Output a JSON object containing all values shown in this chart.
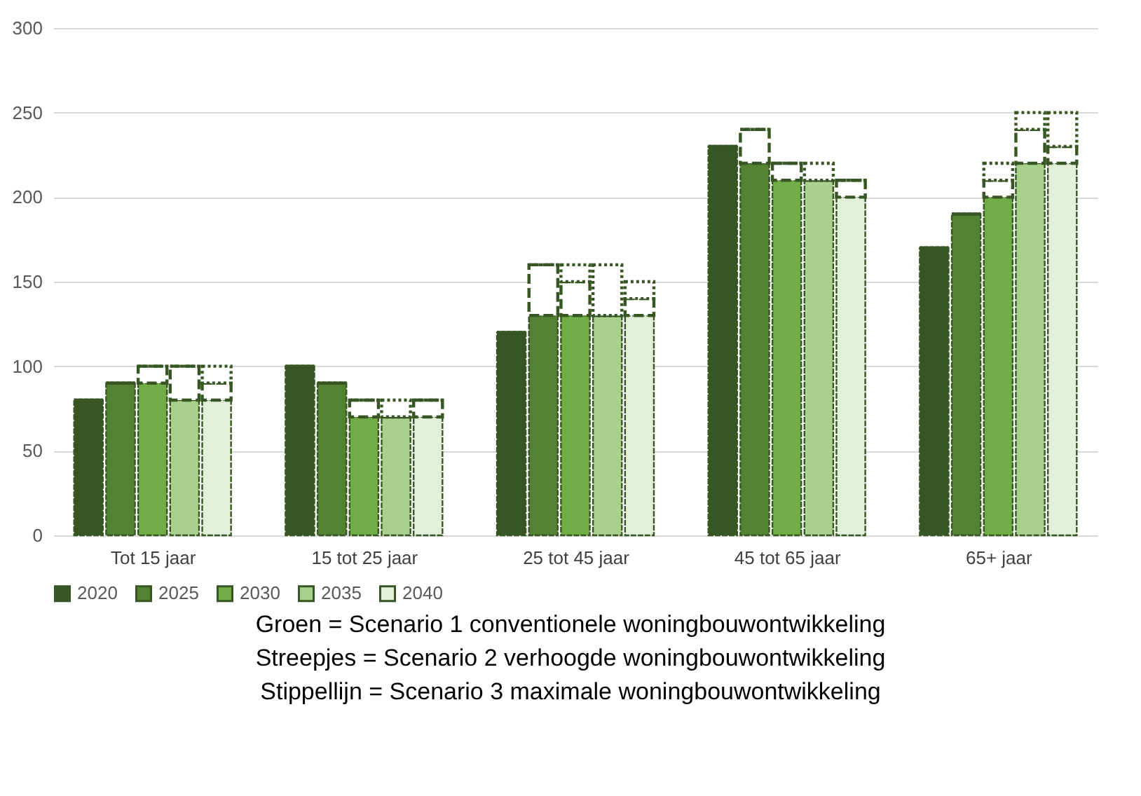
{
  "chart_data": {
    "type": "bar",
    "stacked": true,
    "categories": [
      null,
      null,
      "Tot 15 jaar",
      null,
      null,
      null,
      null,
      "15 tot 25 jaar",
      null,
      null,
      null,
      null,
      "25 tot 45 jaar",
      null,
      null,
      null,
      null,
      "45 tot 65 jaar",
      null,
      null,
      null,
      null,
      "65+ jaar",
      null,
      null
    ],
    "series": [
      {
        "name": "2020",
        "color": "#375623",
        "values": [
          80,
          null,
          null,
          null,
          null,
          100,
          null,
          null,
          null,
          null,
          120,
          null,
          null,
          null,
          null,
          230,
          null,
          null,
          null,
          null,
          170,
          null,
          null,
          null,
          null
        ]
      },
      {
        "name": "2025",
        "color": "#548235",
        "values": [
          null,
          90,
          null,
          null,
          null,
          null,
          90,
          null,
          null,
          null,
          null,
          130,
          null,
          null,
          null,
          null,
          220,
          null,
          null,
          null,
          null,
          190,
          null,
          null,
          null
        ]
      },
      {
        "name": "2030",
        "color": "#70ad47",
        "values": [
          null,
          null,
          90,
          null,
          null,
          null,
          null,
          70,
          null,
          null,
          null,
          null,
          130,
          null,
          null,
          null,
          null,
          210,
          null,
          null,
          null,
          null,
          200,
          null,
          null
        ]
      },
      {
        "name": "2035",
        "color": "#a9d18e",
        "values": [
          null,
          null,
          null,
          80,
          null,
          null,
          null,
          null,
          70,
          null,
          null,
          null,
          null,
          130,
          null,
          null,
          null,
          null,
          210,
          null,
          null,
          null,
          null,
          220,
          null
        ]
      },
      {
        "name": "2040",
        "color": "#e2f0d9",
        "values": [
          null,
          null,
          null,
          null,
          80,
          null,
          null,
          null,
          null,
          70,
          null,
          null,
          null,
          null,
          130,
          null,
          null,
          null,
          null,
          200,
          null,
          null,
          null,
          null,
          220
        ]
      },
      {
        "color": "#375623",
        "line_style": "dashed",
        "values": [
          0,
          0,
          10,
          20,
          10,
          0,
          0,
          10,
          0,
          10,
          0,
          30,
          20,
          0,
          10,
          0,
          20,
          10,
          0,
          10,
          0,
          0,
          10,
          20,
          10
        ]
      },
      {
        "color": "#375623",
        "line_style": "dotted",
        "values": [
          0,
          0,
          0,
          0,
          10,
          0,
          0,
          0,
          10,
          0,
          0,
          0,
          10,
          30,
          10,
          0,
          0,
          0,
          10,
          0,
          0,
          0,
          10,
          10,
          20
        ]
      }
    ],
    "ylim": [
      0,
      300
    ],
    "yticks": [
      0,
      50,
      100,
      150,
      200,
      250,
      300
    ],
    "grid": "y",
    "legend": "bottom",
    "annotations": [
      "Groen = Scenario 1 conventionele woningbouwontwikkeling",
      "Streepjes = Scenario 2 verhoogde woningbouwontwikkeling",
      "Stippellijn = Scenario 3 maximale woningbouwontwikkeling"
    ]
  }
}
